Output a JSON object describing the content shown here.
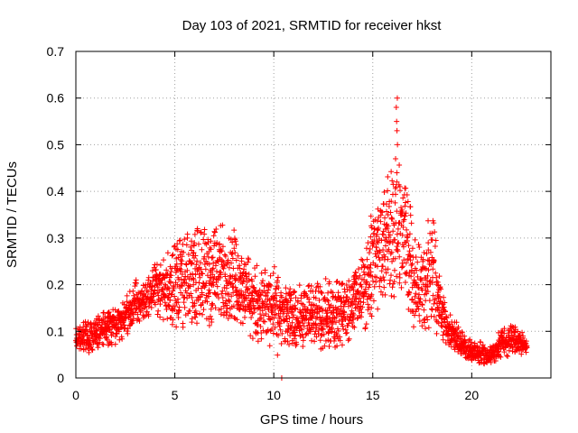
{
  "chart_data": {
    "type": "scatter",
    "title": "Day 103 of 2021, SRMTID for receiver hkst",
    "xlabel": "GPS time / hours",
    "ylabel": "SRMTID / TECUs",
    "xlim": [
      0,
      24
    ],
    "ylim": [
      0,
      0.7
    ],
    "xticks": [
      0,
      5,
      10,
      15,
      20
    ],
    "xtick_labels": [
      "0",
      "5",
      "10",
      "15",
      "20"
    ],
    "yticks": [
      0,
      0.1,
      0.2,
      0.3,
      0.4,
      0.5,
      0.6,
      0.7
    ],
    "ytick_labels": [
      "0",
      "0.1",
      "0.2",
      "0.3",
      "0.4",
      "0.5",
      "0.6",
      "0.7"
    ],
    "grid": true,
    "marker": "+",
    "color": "#ff0000",
    "series": [
      {
        "name": "SRMTID",
        "envelope_x": [
          0,
          0.5,
          1,
          1.5,
          2,
          2.5,
          3,
          3.5,
          4,
          4.5,
          5,
          5.5,
          6,
          6.5,
          7,
          7.5,
          8,
          8.5,
          9,
          9.5,
          10,
          10.5,
          11,
          11.5,
          12,
          12.5,
          13,
          13.5,
          14,
          14.5,
          15,
          15.5,
          16,
          16.5,
          17,
          17.5,
          18,
          18.5,
          19,
          19.5,
          20,
          20.5,
          21,
          21.5,
          22,
          22.5,
          22.8
        ],
        "envelope_low": [
          0.05,
          0.05,
          0.06,
          0.07,
          0.07,
          0.09,
          0.1,
          0.12,
          0.15,
          0.12,
          0.1,
          0.1,
          0.12,
          0.1,
          0.1,
          0.12,
          0.12,
          0.1,
          0.08,
          0.07,
          0.06,
          0.06,
          0.07,
          0.06,
          0.06,
          0.06,
          0.06,
          0.07,
          0.08,
          0.1,
          0.13,
          0.16,
          0.17,
          0.18,
          0.1,
          0.1,
          0.1,
          0.08,
          0.06,
          0.04,
          0.03,
          0.03,
          0.03,
          0.04,
          0.05,
          0.05,
          0.05
        ],
        "envelope_high": [
          0.12,
          0.12,
          0.13,
          0.15,
          0.15,
          0.17,
          0.21,
          0.21,
          0.25,
          0.27,
          0.32,
          0.3,
          0.32,
          0.33,
          0.33,
          0.33,
          0.31,
          0.28,
          0.24,
          0.26,
          0.23,
          0.2,
          0.19,
          0.2,
          0.2,
          0.21,
          0.21,
          0.22,
          0.24,
          0.27,
          0.37,
          0.39,
          0.47,
          0.45,
          0.35,
          0.3,
          0.36,
          0.18,
          0.13,
          0.1,
          0.08,
          0.08,
          0.07,
          0.11,
          0.12,
          0.1,
          0.08
        ],
        "spike": {
          "x": 16.2,
          "values": [
            0.6,
            0.58,
            0.55,
            0.53,
            0.5,
            0.47,
            0.44,
            0.42
          ]
        },
        "outliers": [
          {
            "x": 10.4,
            "y": 0.0
          }
        ]
      }
    ]
  }
}
